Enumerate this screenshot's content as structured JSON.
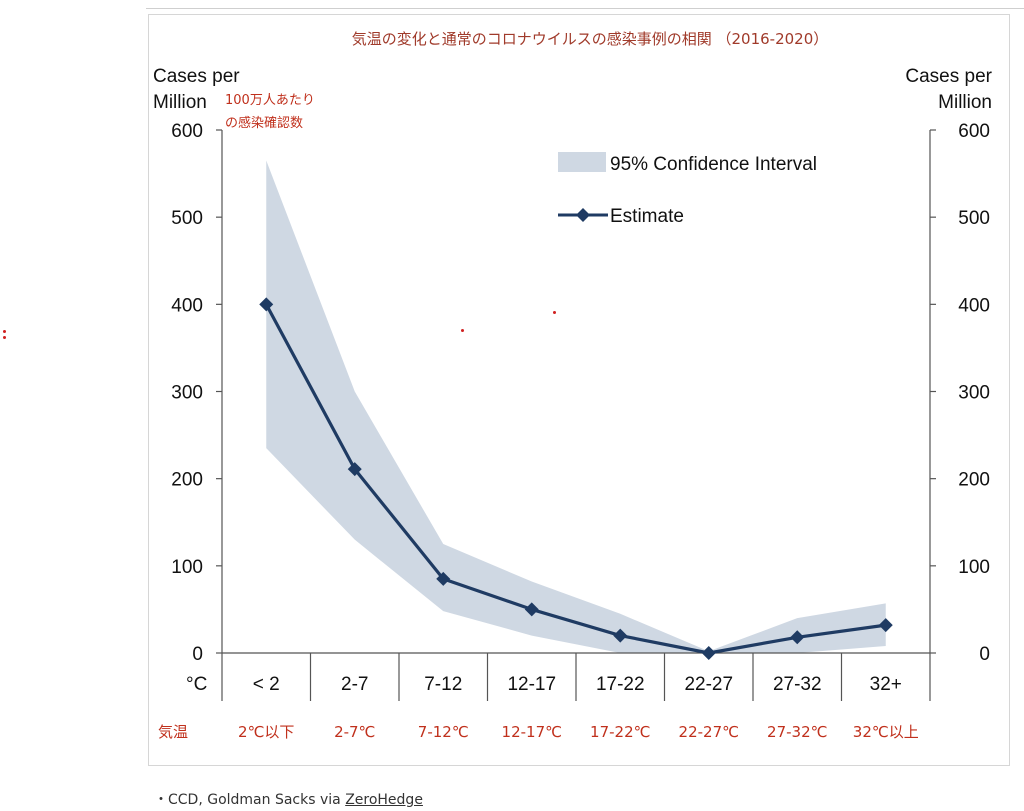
{
  "chart_data": {
    "type": "line",
    "title": "気温の変化と通常のコロナウイルスの感染事例の相関 （2016-2020）",
    "ylabel_left": [
      "Cases per",
      "Million"
    ],
    "ylabel_right": [
      "Cases per",
      "Million"
    ],
    "ylabel_jp": [
      "100万人あたり",
      "の感染確認数"
    ],
    "xlabel": "°C",
    "xlabel_jp": "気温",
    "categories": [
      "< 2",
      "2-7",
      "7-12",
      "12-17",
      "17-22",
      "22-27",
      "27-32",
      "32+"
    ],
    "categories_jp": [
      "2℃以下",
      "2-7℃",
      "7-12℃",
      "12-17℃",
      "17-22℃",
      "22-27℃",
      "27-32℃",
      "32℃以上"
    ],
    "ylim": [
      0,
      600
    ],
    "yticks": [
      0,
      100,
      200,
      300,
      400,
      500,
      600
    ],
    "legend": {
      "position": "top-right",
      "ci_label": "95% Confidence Interval",
      "estimate_label": "Estimate"
    },
    "series": [
      {
        "name": "Estimate",
        "values": [
          400,
          211,
          85,
          50,
          20,
          0,
          18,
          32
        ]
      }
    ],
    "confidence_interval": {
      "upper": [
        565,
        300,
        125,
        82,
        45,
        2,
        40,
        57
      ],
      "lower": [
        235,
        130,
        48,
        20,
        0,
        0,
        0,
        8
      ]
    },
    "colors": {
      "estimate": "#1f3b63",
      "band": "#cfd8e3",
      "jp_text": "#c0301c",
      "axis": "#555555"
    }
  },
  "source": {
    "prefix": "・CCD, Goldman Sacks via ",
    "link": "ZeroHedge"
  }
}
